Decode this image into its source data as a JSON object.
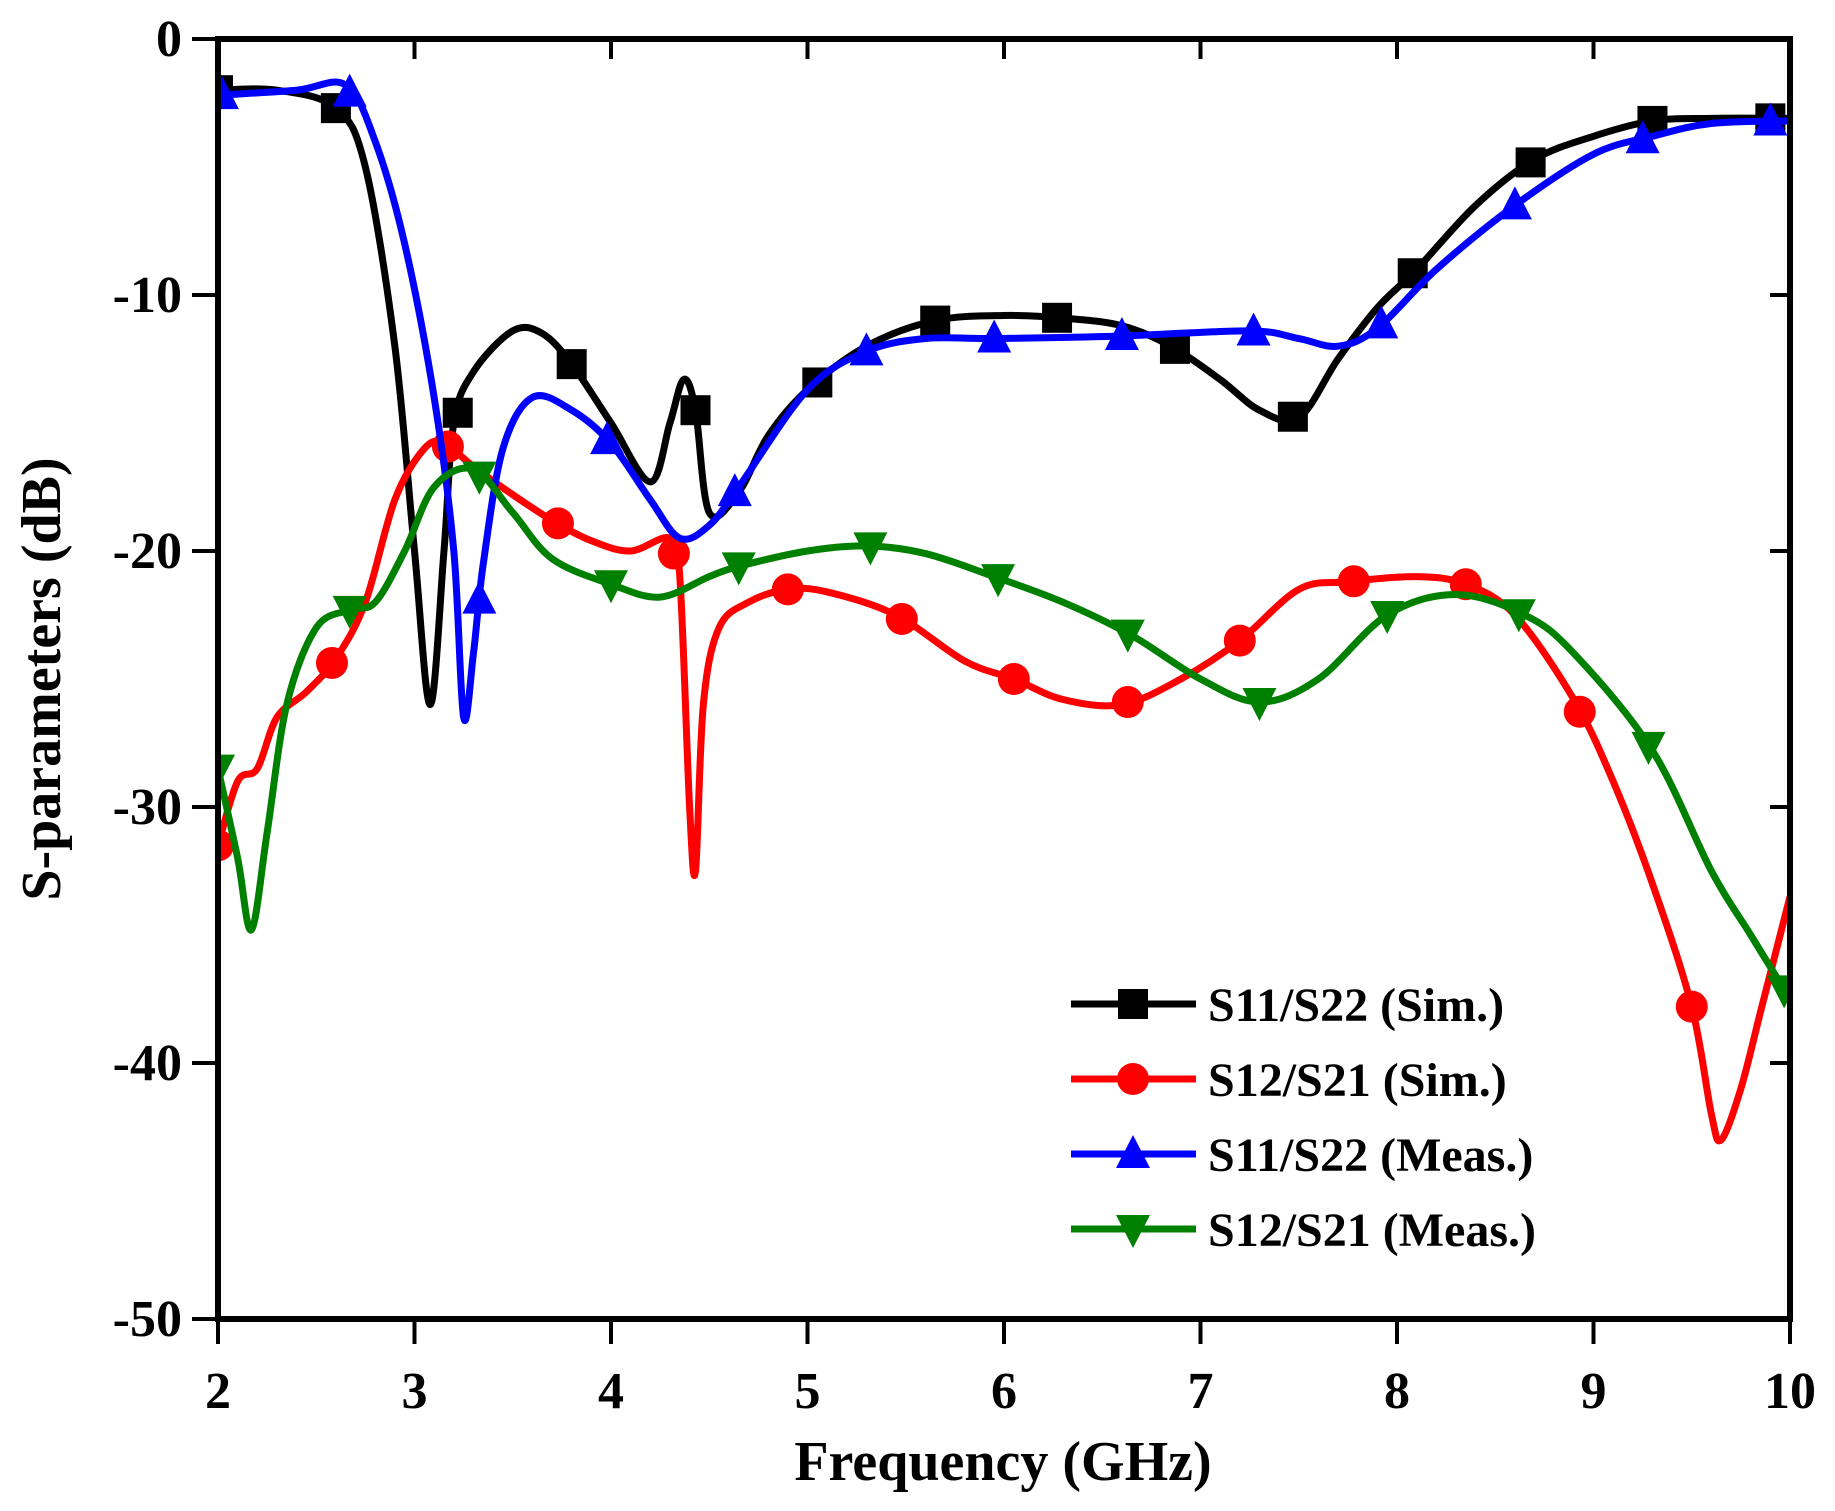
{
  "chart_data": {
    "type": "line",
    "title": "",
    "xlabel": "Frequency (GHz)",
    "ylabel": "S-parameters (dB)",
    "xlim": [
      2,
      10
    ],
    "ylim": [
      -50,
      0
    ],
    "xticks": [
      2,
      3,
      4,
      5,
      6,
      7,
      8,
      9,
      10
    ],
    "yticks": [
      0,
      -10,
      -20,
      -30,
      -40,
      -50
    ],
    "xtick_labels": [
      "2",
      "3",
      "4",
      "5",
      "6",
      "7",
      "8",
      "9",
      "10"
    ],
    "ytick_labels": [
      "0",
      "-10",
      "-20",
      "-30",
      "-40",
      "-50"
    ],
    "legend_position": "bottom-right",
    "grid": false,
    "series": [
      {
        "name": "S11/S22 (Sim.)",
        "color": "#000000",
        "marker": "square",
        "points": [
          [
            2,
            -2
          ],
          [
            2.3,
            -2
          ],
          [
            2.6,
            -2.7
          ],
          [
            2.75,
            -5
          ],
          [
            2.9,
            -12
          ],
          [
            3.0,
            -20
          ],
          [
            3.08,
            -26
          ],
          [
            3.15,
            -20
          ],
          [
            3.2,
            -15
          ],
          [
            3.3,
            -13
          ],
          [
            3.5,
            -11.4
          ],
          [
            3.65,
            -11.5
          ],
          [
            3.8,
            -12.7
          ],
          [
            4.0,
            -15
          ],
          [
            4.2,
            -17.3
          ],
          [
            4.3,
            -15
          ],
          [
            4.37,
            -13.3
          ],
          [
            4.43,
            -14.5
          ],
          [
            4.5,
            -18.5
          ],
          [
            4.65,
            -17.7
          ],
          [
            4.8,
            -15.5
          ],
          [
            5.0,
            -13.7
          ],
          [
            5.3,
            -12
          ],
          [
            5.65,
            -11
          ],
          [
            6.0,
            -10.8
          ],
          [
            6.3,
            -10.9
          ],
          [
            6.6,
            -11.2
          ],
          [
            6.85,
            -12
          ],
          [
            7.1,
            -13.3
          ],
          [
            7.3,
            -14.5
          ],
          [
            7.5,
            -14.8
          ],
          [
            7.7,
            -12.5
          ],
          [
            7.9,
            -10.5
          ],
          [
            8.1,
            -9
          ],
          [
            8.4,
            -6.5
          ],
          [
            8.7,
            -4.7
          ],
          [
            9.0,
            -3.8
          ],
          [
            9.3,
            -3.2
          ],
          [
            9.6,
            -3.1
          ],
          [
            10,
            -3.1
          ]
        ],
        "marker_x": [
          2.0,
          2.6,
          3.22,
          3.8,
          4.43,
          5.05,
          5.65,
          6.27,
          6.87,
          7.47,
          8.08,
          8.68,
          9.3,
          9.9
        ]
      },
      {
        "name": "S12/S21 (Sim.)",
        "color": "#ff0000",
        "marker": "circle",
        "points": [
          [
            2,
            -31.5
          ],
          [
            2.1,
            -29
          ],
          [
            2.2,
            -28.5
          ],
          [
            2.3,
            -26.5
          ],
          [
            2.45,
            -25.5
          ],
          [
            2.6,
            -24.2
          ],
          [
            2.75,
            -22
          ],
          [
            2.9,
            -18
          ],
          [
            3.05,
            -16
          ],
          [
            3.15,
            -15.8
          ],
          [
            3.3,
            -16.7
          ],
          [
            3.5,
            -17.8
          ],
          [
            3.7,
            -18.8
          ],
          [
            3.9,
            -19.6
          ],
          [
            4.1,
            -20
          ],
          [
            4.3,
            -19.5
          ],
          [
            4.35,
            -21
          ],
          [
            4.4,
            -30
          ],
          [
            4.43,
            -32.5
          ],
          [
            4.47,
            -26
          ],
          [
            4.55,
            -23
          ],
          [
            4.7,
            -22
          ],
          [
            4.9,
            -21.5
          ],
          [
            5.1,
            -21.6
          ],
          [
            5.45,
            -22.5
          ],
          [
            5.8,
            -24.3
          ],
          [
            6.05,
            -25
          ],
          [
            6.3,
            -25.8
          ],
          [
            6.6,
            -26
          ],
          [
            6.9,
            -25
          ],
          [
            7.2,
            -23.5
          ],
          [
            7.5,
            -21.5
          ],
          [
            7.75,
            -21.2
          ],
          [
            8.1,
            -21
          ],
          [
            8.35,
            -21.3
          ],
          [
            8.6,
            -22.5
          ],
          [
            8.9,
            -25.8
          ],
          [
            9.1,
            -29
          ],
          [
            9.3,
            -33
          ],
          [
            9.5,
            -37.8
          ],
          [
            9.6,
            -42
          ],
          [
            9.65,
            -43
          ],
          [
            9.75,
            -41
          ],
          [
            9.85,
            -38
          ],
          [
            9.95,
            -35
          ],
          [
            10,
            -33.5
          ]
        ],
        "marker_x": [
          2.0,
          2.58,
          3.17,
          3.73,
          4.32,
          4.9,
          5.48,
          6.05,
          6.63,
          7.2,
          7.78,
          8.35,
          8.93,
          9.5
        ]
      },
      {
        "name": "S11/S22 (Meas.)",
        "color": "#0000ff",
        "marker": "triangle-up",
        "points": [
          [
            2,
            -2.2
          ],
          [
            2.4,
            -2.0
          ],
          [
            2.65,
            -1.8
          ],
          [
            2.8,
            -4
          ],
          [
            2.95,
            -8
          ],
          [
            3.1,
            -14
          ],
          [
            3.2,
            -20
          ],
          [
            3.25,
            -26.5
          ],
          [
            3.3,
            -24
          ],
          [
            3.35,
            -20.5
          ],
          [
            3.45,
            -16
          ],
          [
            3.6,
            -14
          ],
          [
            3.8,
            -14.5
          ],
          [
            4.0,
            -15.8
          ],
          [
            4.2,
            -18
          ],
          [
            4.35,
            -19.5
          ],
          [
            4.5,
            -19
          ],
          [
            4.65,
            -17.5
          ],
          [
            5.0,
            -13.7
          ],
          [
            5.3,
            -12.2
          ],
          [
            5.6,
            -11.7
          ],
          [
            5.95,
            -11.7
          ],
          [
            6.6,
            -11.6
          ],
          [
            7.25,
            -11.4
          ],
          [
            7.5,
            -11.7
          ],
          [
            7.7,
            -12
          ],
          [
            7.9,
            -11.3
          ],
          [
            8.2,
            -9
          ],
          [
            8.6,
            -6.5
          ],
          [
            9.0,
            -4.5
          ],
          [
            9.3,
            -3.8
          ],
          [
            9.6,
            -3.3
          ],
          [
            10,
            -3.2
          ]
        ],
        "marker_x": [
          2.02,
          2.67,
          3.33,
          3.98,
          4.63,
          5.3,
          5.95,
          6.6,
          7.27,
          7.92,
          8.6,
          9.25,
          9.9
        ]
      },
      {
        "name": "S12/S21 (Meas.)",
        "color": "#008000",
        "marker": "triangle-down",
        "points": [
          [
            2,
            -28.5
          ],
          [
            2.1,
            -32
          ],
          [
            2.17,
            -34.8
          ],
          [
            2.25,
            -31
          ],
          [
            2.35,
            -26
          ],
          [
            2.5,
            -23
          ],
          [
            2.67,
            -22.3
          ],
          [
            2.8,
            -22
          ],
          [
            2.95,
            -20
          ],
          [
            3.1,
            -17.5
          ],
          [
            3.3,
            -16.8
          ],
          [
            3.5,
            -18.5
          ],
          [
            3.7,
            -20.3
          ],
          [
            4.0,
            -21.3
          ],
          [
            4.25,
            -21.8
          ],
          [
            4.5,
            -21
          ],
          [
            4.65,
            -20.6
          ],
          [
            5.0,
            -20
          ],
          [
            5.3,
            -19.8
          ],
          [
            5.6,
            -20.1
          ],
          [
            5.95,
            -21
          ],
          [
            6.3,
            -22
          ],
          [
            6.65,
            -23.3
          ],
          [
            7.0,
            -25
          ],
          [
            7.3,
            -25.9
          ],
          [
            7.6,
            -25
          ],
          [
            7.95,
            -22.5
          ],
          [
            8.3,
            -21.7
          ],
          [
            8.65,
            -22.5
          ],
          [
            8.9,
            -24
          ],
          [
            9.3,
            -27.8
          ],
          [
            9.6,
            -32.5
          ],
          [
            9.8,
            -35
          ],
          [
            10,
            -37.5
          ]
        ],
        "marker_x": [
          2.0,
          2.67,
          3.33,
          4.0,
          4.65,
          5.32,
          5.97,
          6.63,
          7.3,
          7.95,
          8.62,
          9.28,
          9.97
        ]
      }
    ]
  }
}
